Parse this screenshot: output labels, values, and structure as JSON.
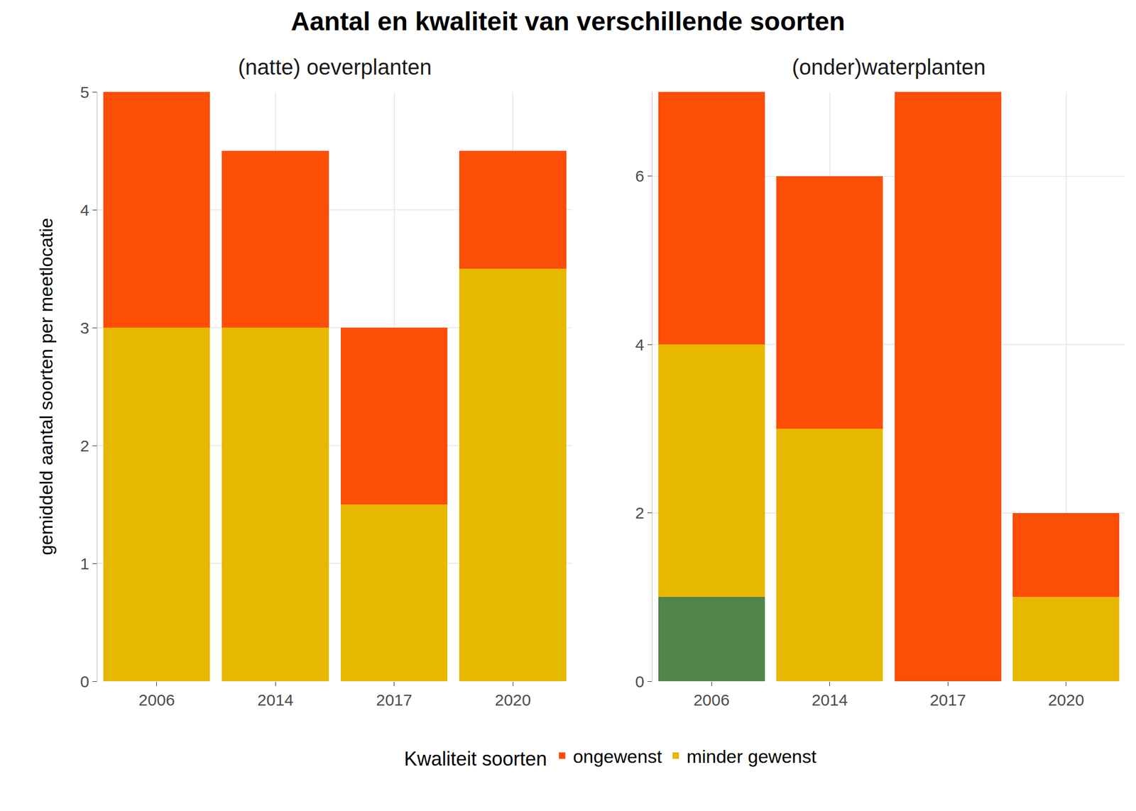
{
  "chart_data": {
    "type": "bar",
    "title": "Aantal en kwaliteit van verschillende soorten",
    "y_label": "gemiddeld aantal soorten per meetlocatie",
    "stacked": true,
    "grid": true,
    "legend": "bottom",
    "legend_title": "Kwaliteit soorten",
    "panels": [
      {
        "subtitle": "(natte) oeverplanten",
        "categories": [
          "2006",
          "2014",
          "2017",
          "2020"
        ],
        "ylim": [
          0,
          5
        ],
        "yticks": [
          0,
          1,
          2,
          3,
          4,
          5
        ],
        "series": [
          {
            "name": "minder gewenst",
            "color": "#E7B800",
            "values": [
              3,
              3,
              1.5,
              3.5
            ]
          },
          {
            "name": "ongewenst",
            "color": "#FC4E07",
            "values": [
              2,
              1.5,
              1.5,
              1
            ]
          }
        ]
      },
      {
        "subtitle": "(onder)waterplanten",
        "categories": [
          "2006",
          "2014",
          "2017",
          "2020"
        ],
        "ylim": [
          0,
          7
        ],
        "yticks": [
          0,
          2,
          4,
          6
        ],
        "series": [
          {
            "color": "#52854C",
            "values": [
              1,
              0,
              0,
              0
            ]
          },
          {
            "name": "minder gewenst",
            "color": "#E7B800",
            "values": [
              3,
              3,
              0,
              1
            ]
          },
          {
            "name": "ongewenst",
            "color": "#FC4E07",
            "values": [
              3,
              3,
              7,
              1
            ]
          }
        ]
      }
    ]
  }
}
